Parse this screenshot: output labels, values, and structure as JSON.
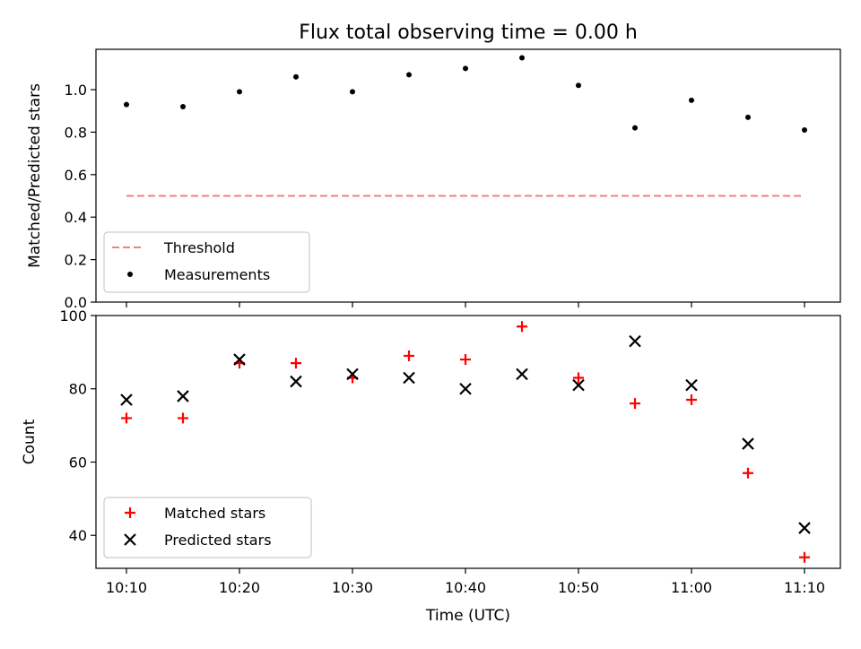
{
  "figure": {
    "title": "Flux total observing time = 0.00 h",
    "xlabel": "Time (UTC)"
  },
  "colors": {
    "threshold": "#f08080",
    "measurements": "#000000",
    "matched": "#ff0000",
    "predicted": "#000000"
  },
  "chart_data": [
    {
      "type": "scatter",
      "title": "Flux total observing time = 0.00 h",
      "xlabel": "",
      "ylabel": "Matched/Predicted stars",
      "ylim": [
        0,
        1.19
      ],
      "yticks": [
        0.0,
        0.2,
        0.4,
        0.6,
        0.8,
        1.0
      ],
      "ytick_labels": [
        "0.0",
        "0.2",
        "0.4",
        "0.6",
        "0.8",
        "1.0"
      ],
      "x": [
        "10:10",
        "10:15",
        "10:20",
        "10:25",
        "10:30",
        "10:35",
        "10:40",
        "10:45",
        "10:50",
        "10:55",
        "11:00",
        "11:05",
        "11:10"
      ],
      "series": [
        {
          "name": "Threshold",
          "style": "dashed-line",
          "values": [
            0.5,
            0.5,
            0.5,
            0.5,
            0.5,
            0.5,
            0.5,
            0.5,
            0.5,
            0.5,
            0.5,
            0.5,
            0.5
          ]
        },
        {
          "name": "Measurements",
          "style": "dot",
          "values": [
            0.93,
            0.92,
            0.99,
            1.06,
            0.99,
            1.07,
            1.1,
            1.15,
            1.02,
            0.82,
            0.95,
            0.87,
            0.81
          ]
        }
      ],
      "legend": "lower-left",
      "grid": false
    },
    {
      "type": "scatter",
      "xlabel": "Time (UTC)",
      "ylabel": "Count",
      "ylim": [
        31,
        100
      ],
      "yticks": [
        40,
        60,
        80,
        100
      ],
      "ytick_labels": [
        "40",
        "60",
        "80",
        "100"
      ],
      "xticks": [
        "10:10",
        "10:20",
        "10:30",
        "10:40",
        "10:50",
        "11:00",
        "11:10"
      ],
      "x": [
        "10:10",
        "10:15",
        "10:20",
        "10:25",
        "10:30",
        "10:35",
        "10:40",
        "10:45",
        "10:50",
        "10:55",
        "11:00",
        "11:05",
        "11:10"
      ],
      "series": [
        {
          "name": "Matched stars",
          "marker": "plus",
          "values": [
            72,
            72,
            87,
            87,
            83,
            89,
            88,
            97,
            83,
            76,
            77,
            57,
            34
          ]
        },
        {
          "name": "Predicted stars",
          "marker": "x",
          "values": [
            77,
            78,
            88,
            82,
            84,
            83,
            80,
            84,
            81,
            93,
            81,
            65,
            42
          ]
        }
      ],
      "legend": "lower-left",
      "grid": false
    }
  ]
}
